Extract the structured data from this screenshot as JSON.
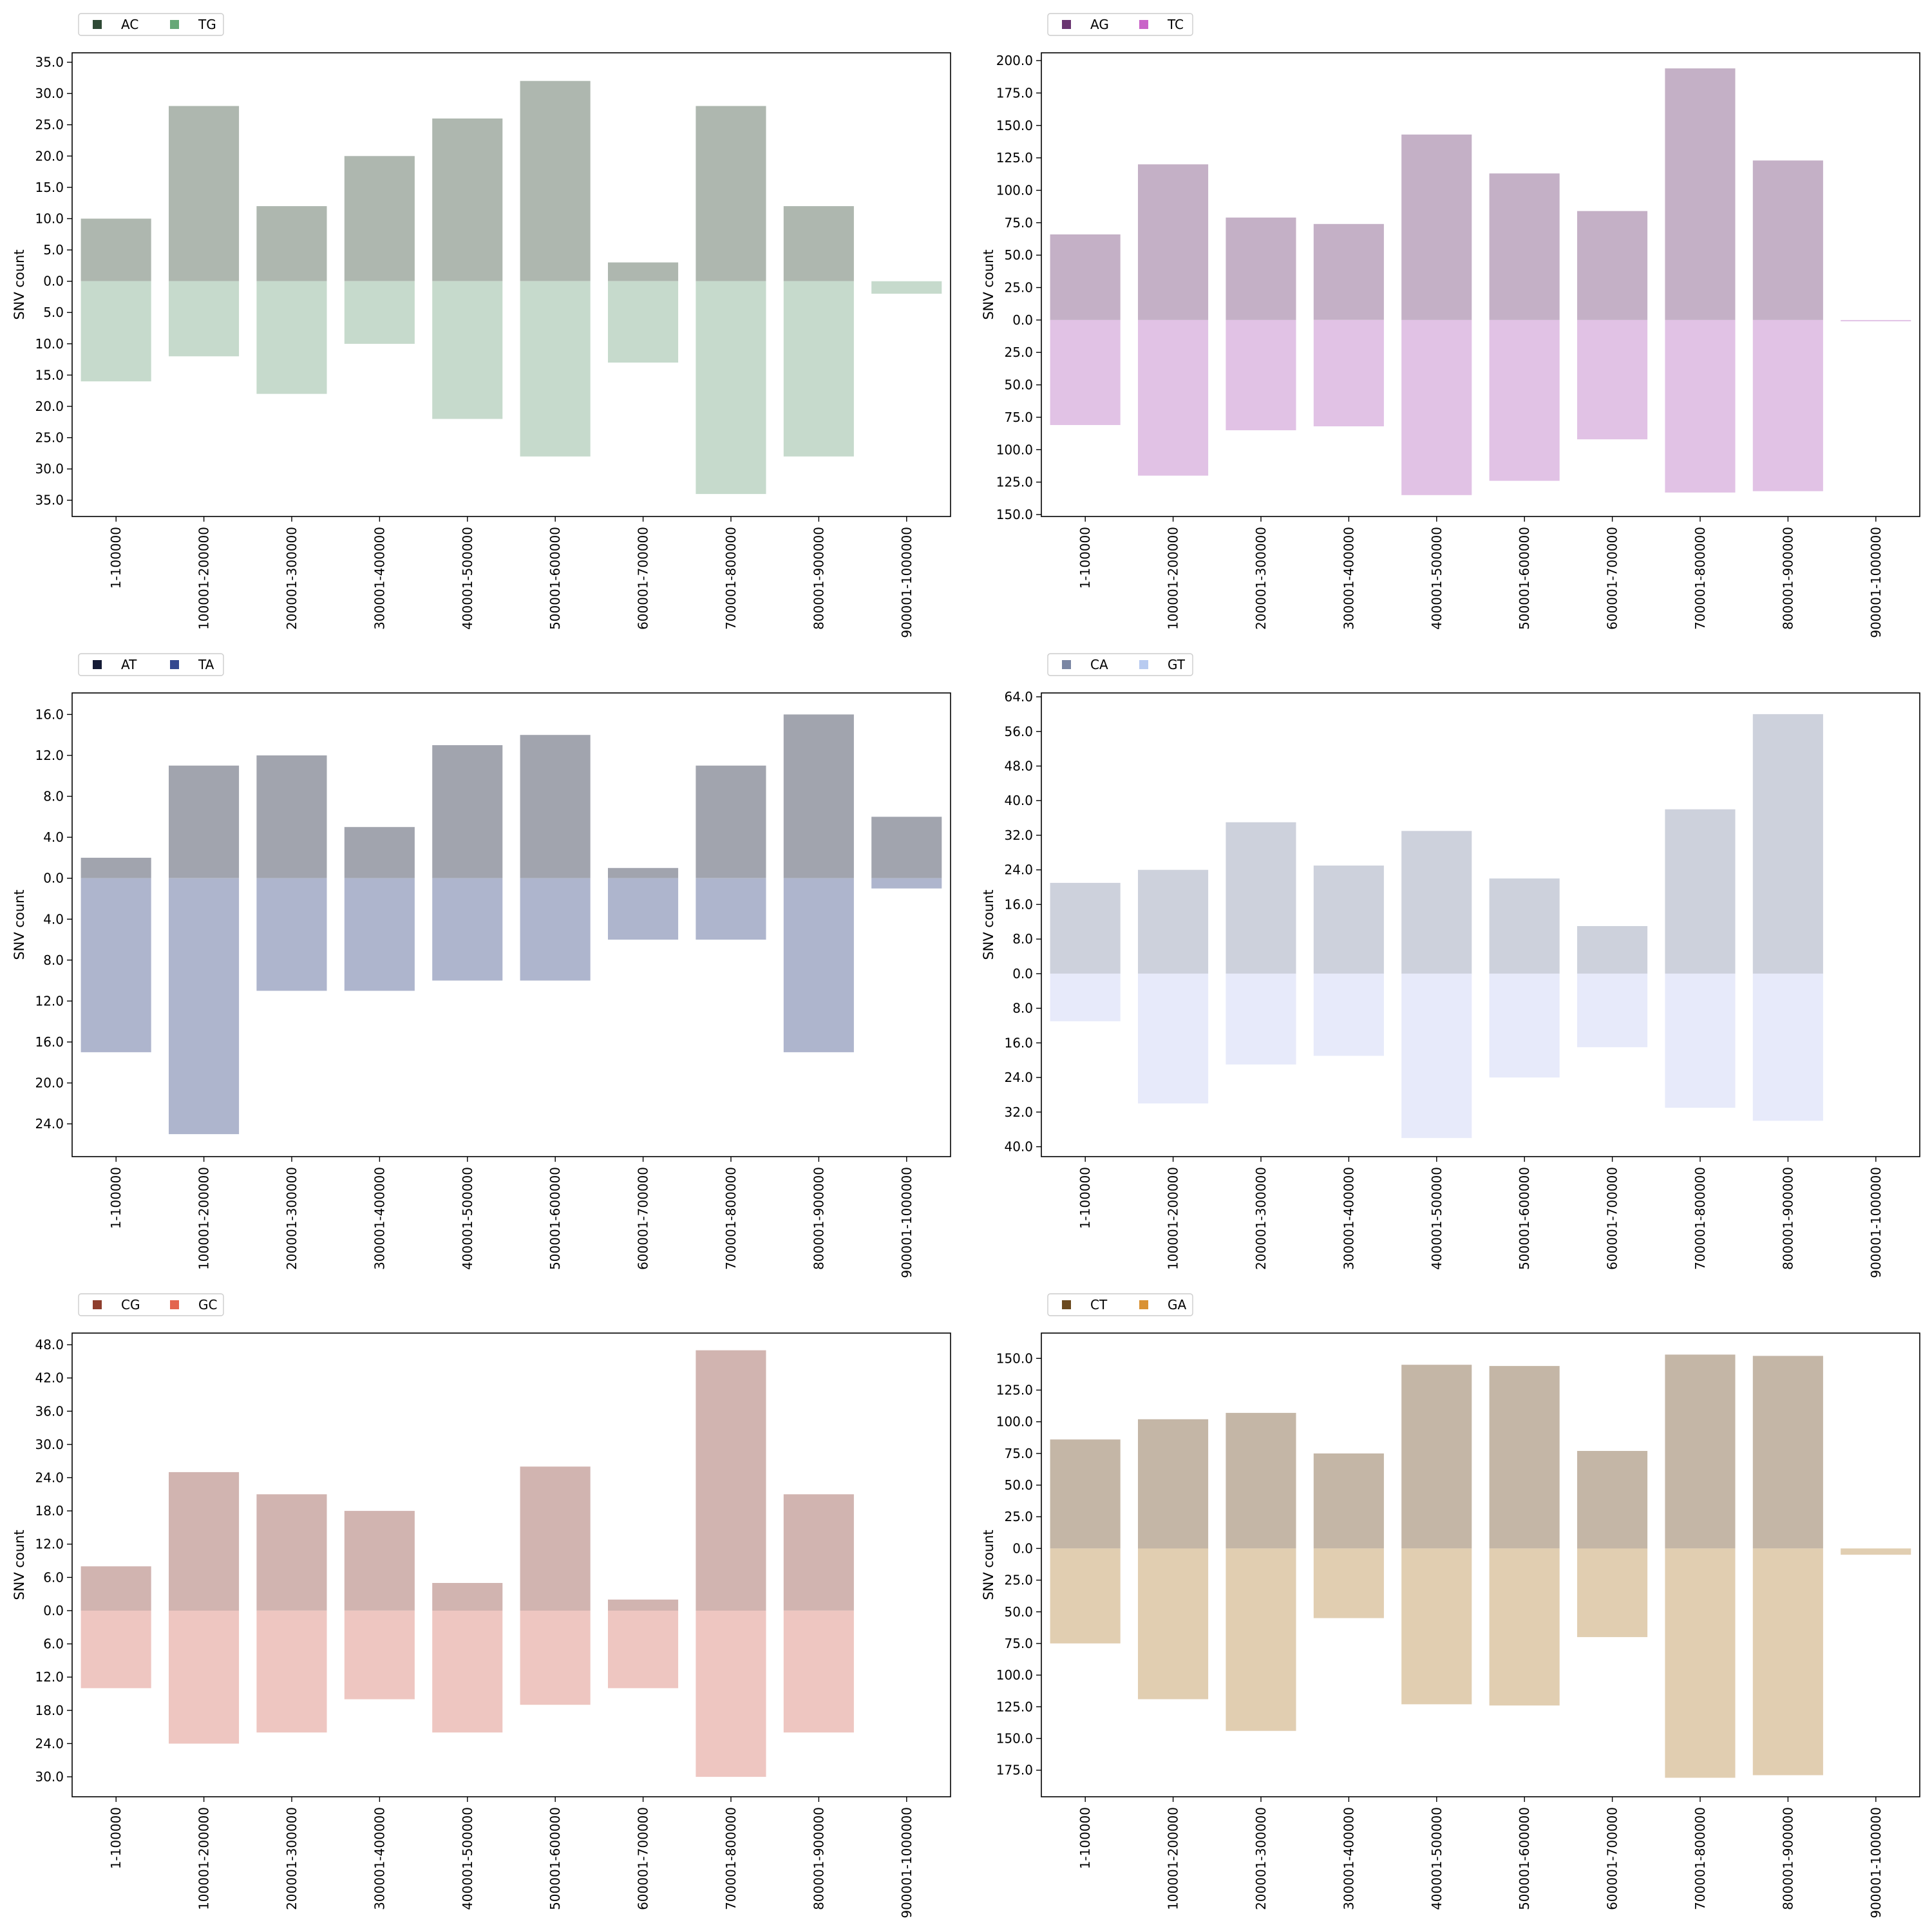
{
  "figure": {
    "background": "#ffffff",
    "grid": false
  },
  "chart_data": [
    {
      "type": "bar",
      "layout": "mirrored-stacked",
      "ylabel": "SNV count",
      "xlabel": "",
      "categories": [
        "1-100000",
        "100001-200000",
        "200001-300000",
        "300001-400000",
        "400001-500000",
        "500001-600000",
        "600001-700000",
        "700001-800000",
        "800001-900000",
        "900001-1000000"
      ],
      "ylim_up": 36.5,
      "ylim_down": 37.6,
      "yticks_up": [
        "35.0",
        "30.0",
        "25.0",
        "20.0",
        "15.0",
        "10.0",
        "5.0",
        "0.0"
      ],
      "yticks_down": [
        "5.0",
        "10.0",
        "15.0",
        "20.0",
        "25.0",
        "30.0",
        "35.0"
      ],
      "legend_placement": "top-left, above plot",
      "series": [
        {
          "name": "AC",
          "direction": "up",
          "color": "#2f4a36",
          "bar_color": "#aeb7af",
          "values": [
            10,
            28,
            12,
            20,
            26,
            32,
            3,
            28,
            12,
            0
          ]
        },
        {
          "name": "TG",
          "direction": "down",
          "color": "#66a877",
          "bar_color": "#c6dacc",
          "values": [
            16,
            12,
            18,
            10,
            22,
            28,
            13,
            34,
            28,
            2
          ]
        }
      ]
    },
    {
      "type": "bar",
      "layout": "mirrored-stacked",
      "ylabel": "SNV count",
      "xlabel": "",
      "categories": [
        "1-100000",
        "100001-200000",
        "200001-300000",
        "300001-400000",
        "400001-500000",
        "500001-600000",
        "600001-700000",
        "700001-800000",
        "800001-900000",
        "900001-1000000"
      ],
      "ylim_up": 206,
      "ylim_down": 151.5,
      "yticks_up": [
        "200.0",
        "175.0",
        "150.0",
        "125.0",
        "100.0",
        "75.0",
        "50.0",
        "25.0",
        "0.0"
      ],
      "yticks_down": [
        "25.0",
        "50.0",
        "75.0",
        "100.0",
        "125.0",
        "150.0"
      ],
      "legend_placement": "top-left, above plot",
      "series": [
        {
          "name": "AG",
          "direction": "up",
          "color": "#6a3571",
          "bar_color": "#c4b0c6",
          "values": [
            66,
            120,
            79,
            74,
            143,
            113,
            84,
            194,
            123,
            0
          ]
        },
        {
          "name": "TC",
          "direction": "down",
          "color": "#c964c8",
          "bar_color": "#e1c2e5",
          "values": [
            81,
            120,
            85,
            82,
            135,
            124,
            92,
            133,
            132,
            1
          ]
        }
      ]
    },
    {
      "type": "bar",
      "layout": "mirrored-stacked",
      "ylabel": "SNV count",
      "xlabel": "",
      "categories": [
        "1-100000",
        "100001-200000",
        "200001-300000",
        "300001-400000",
        "400001-500000",
        "500001-600000",
        "600001-700000",
        "700001-800000",
        "800001-900000",
        "900001-1000000"
      ],
      "ylim_up": 18.1,
      "ylim_down": 27.2,
      "yticks_up": [
        "16.0",
        "12.0",
        "8.0",
        "4.0",
        "0.0"
      ],
      "yticks_down": [
        "4.0",
        "8.0",
        "12.0",
        "16.0",
        "20.0",
        "24.0"
      ],
      "legend_placement": "top-left, above plot",
      "series": [
        {
          "name": "AT",
          "direction": "up",
          "color": "#151b36",
          "bar_color": "#a1a4ae",
          "values": [
            2,
            11,
            12,
            5,
            13,
            14,
            1,
            11,
            16,
            6
          ]
        },
        {
          "name": "TA",
          "direction": "down",
          "color": "#34488f",
          "bar_color": "#aeb5cd",
          "values": [
            17,
            25,
            11,
            11,
            10,
            10,
            6,
            6,
            17,
            1
          ]
        }
      ]
    },
    {
      "type": "bar",
      "layout": "mirrored-stacked",
      "ylabel": "SNV count",
      "xlabel": "",
      "categories": [
        "1-100000",
        "100001-200000",
        "200001-300000",
        "300001-400000",
        "400001-500000",
        "500001-600000",
        "600001-700000",
        "700001-800000",
        "800001-900000",
        "900001-1000000"
      ],
      "ylim_up": 64.9,
      "ylim_down": 42.3,
      "yticks_up": [
        "64.0",
        "56.0",
        "48.0",
        "40.0",
        "32.0",
        "24.0",
        "16.0",
        "8.0",
        "0.0"
      ],
      "yticks_down": [
        "8.0",
        "16.0",
        "24.0",
        "32.0",
        "40.0"
      ],
      "legend_placement": "top-left, above plot",
      "series": [
        {
          "name": "CA",
          "direction": "up",
          "color": "#7a86a3",
          "bar_color": "#cdd1dc",
          "values": [
            21,
            24,
            35,
            25,
            33,
            22,
            11,
            38,
            60,
            0
          ]
        },
        {
          "name": "GT",
          "direction": "down",
          "color": "#b8cbf0",
          "bar_color": "#e7eafa",
          "values": [
            11,
            30,
            21,
            19,
            38,
            24,
            17,
            31,
            34,
            0
          ]
        }
      ]
    },
    {
      "type": "bar",
      "layout": "mirrored-stacked",
      "ylabel": "SNV count",
      "xlabel": "",
      "categories": [
        "1-100000",
        "100001-200000",
        "200001-300000",
        "300001-400000",
        "400001-500000",
        "500001-600000",
        "600001-700000",
        "700001-800000",
        "800001-900000",
        "900001-1000000"
      ],
      "ylim_up": 50.1,
      "ylim_down": 33.6,
      "yticks_up": [
        "48.0",
        "42.0",
        "36.0",
        "30.0",
        "24.0",
        "18.0",
        "12.0",
        "6.0",
        "0.0"
      ],
      "yticks_down": [
        "6.0",
        "12.0",
        "18.0",
        "24.0",
        "30.0"
      ],
      "legend_placement": "top-left, above plot",
      "series": [
        {
          "name": "CG",
          "direction": "up",
          "color": "#8f3f2e",
          "bar_color": "#d1b4b0",
          "values": [
            8,
            25,
            21,
            18,
            5,
            26,
            2,
            47,
            21,
            0
          ]
        },
        {
          "name": "GC",
          "direction": "down",
          "color": "#e3654f",
          "bar_color": "#eec6c1",
          "values": [
            14,
            24,
            22,
            16,
            22,
            17,
            14,
            30,
            22,
            0
          ]
        }
      ]
    },
    {
      "type": "bar",
      "layout": "mirrored-stacked",
      "ylabel": "SNV count",
      "xlabel": "",
      "categories": [
        "1-100000",
        "100001-200000",
        "200001-300000",
        "300001-400000",
        "400001-500000",
        "500001-600000",
        "600001-700000",
        "700001-800000",
        "800001-900000",
        "900001-1000000"
      ],
      "ylim_up": 170,
      "ylim_down": 196,
      "yticks_up": [
        "150.0",
        "125.0",
        "100.0",
        "75.0",
        "50.0",
        "25.0",
        "0.0"
      ],
      "yticks_down": [
        "25.0",
        "50.0",
        "75.0",
        "100.0",
        "125.0",
        "150.0",
        "175.0"
      ],
      "legend_placement": "top-left, above plot",
      "series": [
        {
          "name": "CT",
          "direction": "up",
          "color": "#6b4a1f",
          "bar_color": "#c4b6a6",
          "values": [
            86,
            102,
            107,
            75,
            145,
            144,
            77,
            153,
            152,
            0
          ]
        },
        {
          "name": "GA",
          "direction": "down",
          "color": "#d99234",
          "bar_color": "#e1ceb1",
          "values": [
            75,
            119,
            144,
            55,
            123,
            124,
            70,
            181,
            179,
            5
          ]
        }
      ]
    }
  ]
}
